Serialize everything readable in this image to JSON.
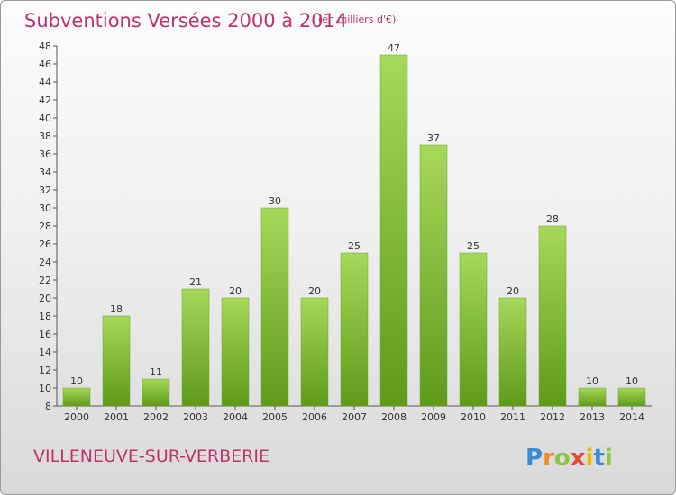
{
  "chart_data": {
    "type": "bar",
    "title": "Subventions Versées 2000 à 2014",
    "subtitle": "(en milliers d'€)",
    "categories": [
      "2000",
      "2001",
      "2002",
      "2003",
      "2004",
      "2005",
      "2006",
      "2007",
      "2008",
      "2009",
      "2010",
      "2011",
      "2012",
      "2013",
      "2014"
    ],
    "values": [
      10,
      18,
      11,
      21,
      20,
      30,
      20,
      25,
      47,
      37,
      25,
      20,
      28,
      10,
      10
    ],
    "ylim": [
      8,
      48
    ],
    "yticks": [
      8,
      10,
      12,
      14,
      16,
      18,
      20,
      22,
      24,
      26,
      28,
      30,
      32,
      34,
      36,
      38,
      40,
      42,
      44,
      46,
      48
    ],
    "grid": false,
    "bar_color": "#7ab82e",
    "bar_color_light": "#a6d85a",
    "bar_color_dark": "#5f9a1a"
  },
  "location": "VILLENEUVE-SUR-VERBERIE",
  "logo": {
    "letters": [
      "P",
      "r",
      "o",
      "x",
      "i",
      "t",
      "i"
    ],
    "colors": [
      "#3a8ad6",
      "#f08a1e",
      "#8cc63f",
      "#e8462e",
      "#f5b800",
      "#3a8ad6",
      "#8cc63f"
    ]
  }
}
